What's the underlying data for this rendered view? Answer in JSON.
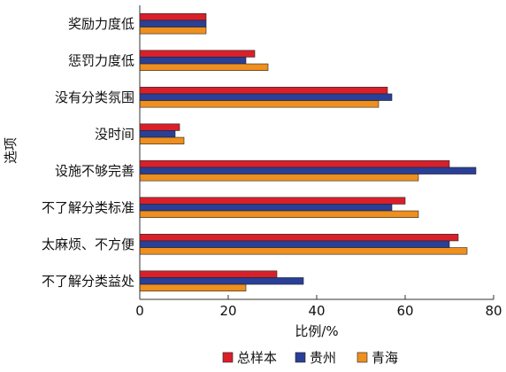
{
  "chart_data": {
    "type": "bar",
    "orientation": "horizontal",
    "title": "",
    "xlabel": "比例/%",
    "ylabel": "选项",
    "xlim": [
      0,
      80
    ],
    "xticks": [
      0,
      20,
      40,
      60,
      80
    ],
    "grid": false,
    "legend_position": "bottom",
    "categories": [
      "奖励力度低",
      "惩罚力度低",
      "没有分类氛围",
      "没时间",
      "设施不够完善",
      "不了解分类标准",
      "太麻烦、不方便",
      "不了解分类益处"
    ],
    "series": [
      {
        "name": "总样本",
        "color": "#d9202a",
        "values": [
          15,
          26,
          56,
          9,
          70,
          60,
          72,
          31
        ]
      },
      {
        "name": "贵州",
        "color": "#2a3f97",
        "values": [
          15,
          24,
          57,
          8,
          76,
          57,
          70,
          37
        ]
      },
      {
        "name": "青海",
        "color": "#ee8f1f",
        "values": [
          15,
          29,
          54,
          10,
          63,
          63,
          74,
          24
        ]
      }
    ]
  }
}
